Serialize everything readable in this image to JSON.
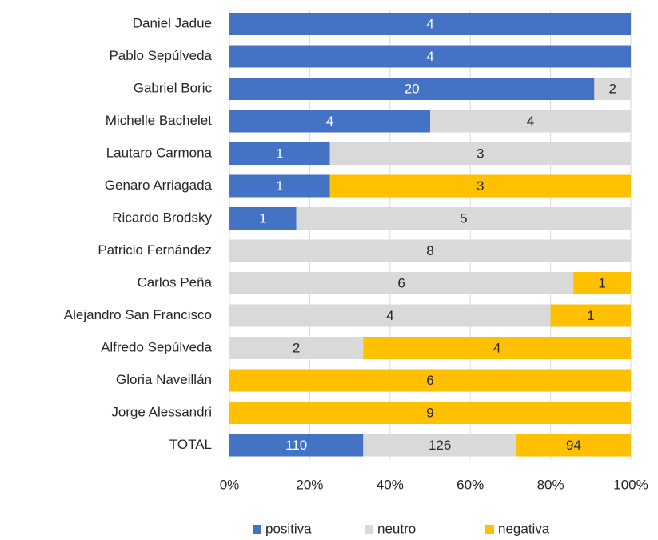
{
  "chart_data": {
    "type": "bar",
    "orientation": "horizontal",
    "stacking": "percent",
    "categories": [
      "Daniel Jadue",
      "Pablo Sepúlveda",
      "Gabriel Boric",
      "Michelle Bachelet",
      "Lautaro Carmona",
      "Genaro Arriagada",
      "Ricardo Brodsky",
      "Patricio Fernández",
      "Carlos Peña",
      "Alejandro San Francisco",
      "Alfredo Sepúlveda",
      "Gloria Naveillán",
      "Jorge Alessandri",
      "TOTAL"
    ],
    "series": [
      {
        "name": "positiva",
        "color": "#4472c4",
        "values": [
          4,
          4,
          20,
          4,
          1,
          1,
          1,
          0,
          0,
          0,
          0,
          0,
          0,
          110
        ]
      },
      {
        "name": "neutro",
        "color": "#d9d9d9",
        "values": [
          0,
          0,
          2,
          4,
          3,
          0,
          5,
          8,
          6,
          4,
          2,
          0,
          0,
          126
        ]
      },
      {
        "name": "negativa",
        "color": "#ffc000",
        "values": [
          0,
          0,
          0,
          0,
          0,
          3,
          0,
          0,
          1,
          1,
          4,
          6,
          9,
          94
        ]
      }
    ],
    "xlim": [
      0,
      100
    ],
    "xticks": [
      {
        "value": 0,
        "label": "0%"
      },
      {
        "value": 20,
        "label": "20%"
      },
      {
        "value": 40,
        "label": "40%"
      },
      {
        "value": 60,
        "label": "60%"
      },
      {
        "value": 80,
        "label": "80%"
      },
      {
        "value": 100,
        "label": "100%"
      }
    ],
    "grid": true,
    "legend": "bottom"
  }
}
